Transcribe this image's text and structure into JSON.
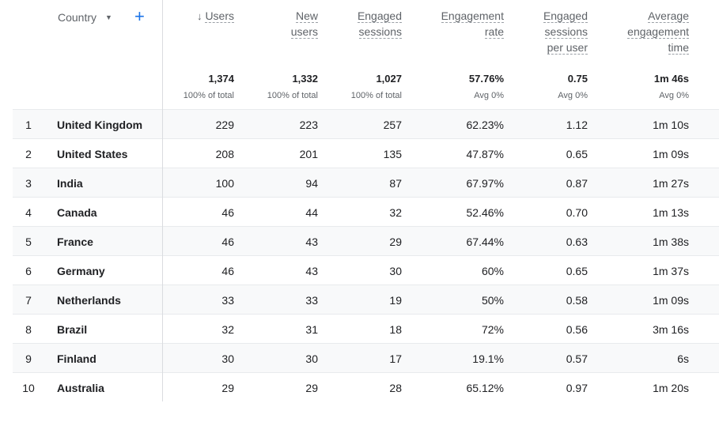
{
  "header": {
    "dimension_label": "Country",
    "caret_icon": "caret-down-icon",
    "add_icon": "plus-icon",
    "sort_icon": "arrow-down-icon",
    "columns": [
      {
        "key": "users",
        "lines": [
          "Users"
        ],
        "total": "1,374",
        "sub": "100% of total"
      },
      {
        "key": "new_users",
        "lines": [
          "New",
          "users"
        ],
        "total": "1,332",
        "sub": "100% of total"
      },
      {
        "key": "engaged_sessions",
        "lines": [
          "Engaged",
          "sessions"
        ],
        "total": "1,027",
        "sub": "100% of total"
      },
      {
        "key": "engagement_rate",
        "lines": [
          "Engagement",
          "rate"
        ],
        "total": "57.76%",
        "sub": "Avg 0%"
      },
      {
        "key": "engaged_sessions_per_user",
        "lines": [
          "Engaged",
          "sessions",
          "per user"
        ],
        "total": "0.75",
        "sub": "Avg 0%"
      },
      {
        "key": "avg_engagement_time",
        "lines": [
          "Average",
          "engagement",
          "time"
        ],
        "total": "1m 46s",
        "sub": "Avg 0%"
      }
    ]
  },
  "rows": [
    {
      "n": "1",
      "country": "United Kingdom",
      "v": [
        "229",
        "223",
        "257",
        "62.23%",
        "1.12",
        "1m 10s"
      ]
    },
    {
      "n": "2",
      "country": "United States",
      "v": [
        "208",
        "201",
        "135",
        "47.87%",
        "0.65",
        "1m 09s"
      ]
    },
    {
      "n": "3",
      "country": "India",
      "v": [
        "100",
        "94",
        "87",
        "67.97%",
        "0.87",
        "1m 27s"
      ]
    },
    {
      "n": "4",
      "country": "Canada",
      "v": [
        "46",
        "44",
        "32",
        "52.46%",
        "0.70",
        "1m 13s"
      ]
    },
    {
      "n": "5",
      "country": "France",
      "v": [
        "46",
        "43",
        "29",
        "67.44%",
        "0.63",
        "1m 38s"
      ]
    },
    {
      "n": "6",
      "country": "Germany",
      "v": [
        "46",
        "43",
        "30",
        "60%",
        "0.65",
        "1m 37s"
      ]
    },
    {
      "n": "7",
      "country": "Netherlands",
      "v": [
        "33",
        "33",
        "19",
        "50%",
        "0.58",
        "1m 09s"
      ]
    },
    {
      "n": "8",
      "country": "Brazil",
      "v": [
        "32",
        "31",
        "18",
        "72%",
        "0.56",
        "3m 16s"
      ]
    },
    {
      "n": "9",
      "country": "Finland",
      "v": [
        "30",
        "30",
        "17",
        "19.1%",
        "0.57",
        "6s"
      ]
    },
    {
      "n": "10",
      "country": "Australia",
      "v": [
        "29",
        "29",
        "28",
        "65.12%",
        "0.97",
        "1m 20s"
      ]
    }
  ]
}
